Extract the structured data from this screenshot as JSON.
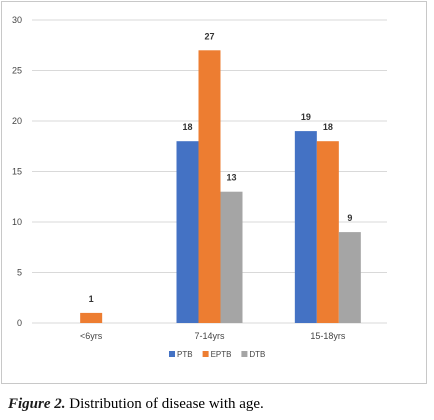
{
  "chart_data": {
    "type": "bar",
    "title": "",
    "xlabel": "",
    "ylabel": "",
    "categories": [
      "<6yrs",
      "7-14yrs",
      "15-18yrs"
    ],
    "series": [
      {
        "name": "PTB",
        "color": "#4472c4",
        "values": [
          0,
          18,
          19
        ]
      },
      {
        "name": "EPTB",
        "color": "#ed7d31",
        "values": [
          1,
          27,
          18
        ]
      },
      {
        "name": "DTB",
        "color": "#a5a5a5",
        "values": [
          0,
          13,
          9
        ]
      }
    ],
    "data_labels": [
      [
        null,
        "18",
        "19"
      ],
      [
        "1",
        "27",
        "18"
      ],
      [
        null,
        "13",
        "9"
      ]
    ],
    "ylim": [
      0,
      30
    ],
    "yticks": [
      "0",
      "5",
      "10",
      "15",
      "20",
      "25",
      "30"
    ],
    "grid": true,
    "legend_position": "bottom"
  },
  "caption": {
    "label": "Figure 2.",
    "text": " Distribution of disease with age."
  }
}
